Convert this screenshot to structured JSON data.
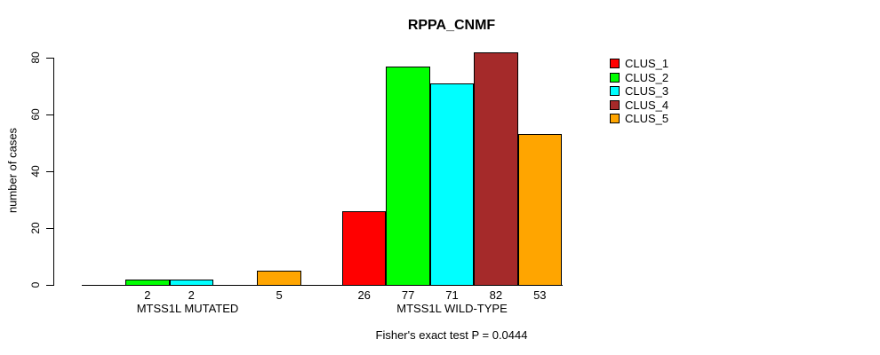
{
  "chart_data": {
    "type": "bar",
    "title": "RPPA_CNMF",
    "ylabel": "number of cases",
    "ylim": [
      0,
      80
    ],
    "y_ticks": [
      0,
      20,
      40,
      60,
      80
    ],
    "categories": [
      "MTSS1L MUTATED",
      "MTSS1L WILD-TYPE"
    ],
    "series": [
      {
        "name": "CLUS_1",
        "color": "#FF0000",
        "values": [
          0,
          26
        ]
      },
      {
        "name": "CLUS_2",
        "color": "#00FF00",
        "values": [
          2,
          77
        ]
      },
      {
        "name": "CLUS_3",
        "color": "#00FFFF",
        "values": [
          2,
          71
        ]
      },
      {
        "name": "CLUS_4",
        "color": "#A52A2A",
        "values": [
          0,
          82
        ]
      },
      {
        "name": "CLUS_5",
        "color": "#FFA500",
        "values": [
          5,
          53
        ]
      }
    ],
    "value_labels": [
      [
        "2",
        "2",
        "5"
      ],
      [
        "26",
        "77",
        "71",
        "82",
        "53"
      ]
    ],
    "legend_position": "right",
    "grid": false,
    "footnote": "Fisher's exact test P = 0.0444"
  }
}
